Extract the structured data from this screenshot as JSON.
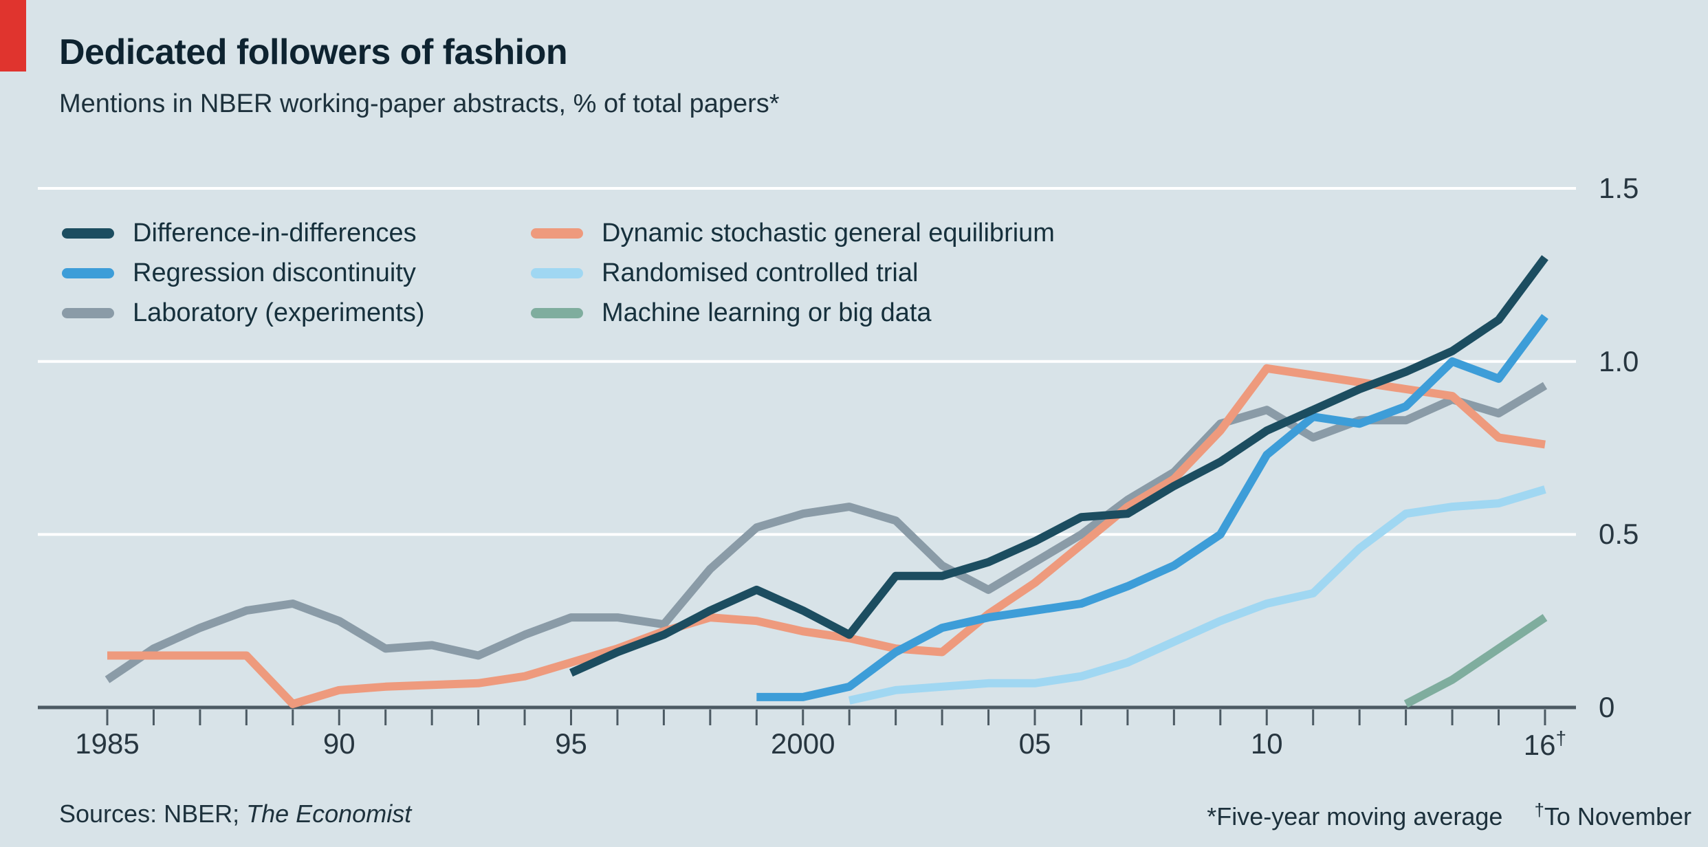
{
  "header": {
    "title": "Dedicated followers of fashion",
    "subtitle": "Mentions in NBER working-paper abstracts, % of total papers*"
  },
  "footer": {
    "sources_prefix": "Sources: NBER; ",
    "sources_italic": "The Economist",
    "note_average": "*Five-year moving average",
    "note_november_symbol": "†",
    "note_november_text": "To November"
  },
  "colors": {
    "background": "#d8e3e8",
    "red_tab": "#e0342e",
    "title_text": "#0e2330",
    "body_text": "#1d313c",
    "gridline": "#ffffff",
    "axis": "#4c5a63",
    "tick_label": "#273640"
  },
  "chart_data": {
    "type": "line",
    "title": "Dedicated followers of fashion",
    "subtitle": "Mentions in NBER working-paper abstracts, % of total papers*",
    "xlabel": "",
    "ylabel": "% of total papers",
    "x_range": [
      1985,
      2016
    ],
    "ylim": [
      0,
      1.5
    ],
    "grid": "horizontal-white",
    "legend_position": "top-left-two-columns",
    "yticks": [
      {
        "value": 0,
        "label": "0"
      },
      {
        "value": 0.5,
        "label": "0.5"
      },
      {
        "value": 1.0,
        "label": "1.0"
      },
      {
        "value": 1.5,
        "label": "1.5"
      }
    ],
    "xticks_labeled": [
      {
        "year": 1985,
        "label": "1985",
        "sup": ""
      },
      {
        "year": 1990,
        "label": "90",
        "sup": ""
      },
      {
        "year": 1995,
        "label": "95",
        "sup": ""
      },
      {
        "year": 2000,
        "label": "2000",
        "sup": ""
      },
      {
        "year": 2005,
        "label": "05",
        "sup": ""
      },
      {
        "year": 2010,
        "label": "10",
        "sup": ""
      },
      {
        "year": 2016,
        "label": "16",
        "sup": "†"
      }
    ],
    "series": [
      {
        "name": "Difference-in-differences",
        "color": "#1c4d60",
        "points": [
          [
            1995,
            0.1
          ],
          [
            1996,
            0.16
          ],
          [
            1997,
            0.21
          ],
          [
            1998,
            0.28
          ],
          [
            1999,
            0.34
          ],
          [
            2000,
            0.28
          ],
          [
            2001,
            0.21
          ],
          [
            2002,
            0.38
          ],
          [
            2003,
            0.38
          ],
          [
            2004,
            0.42
          ],
          [
            2005,
            0.48
          ],
          [
            2006,
            0.55
          ],
          [
            2007,
            0.56
          ],
          [
            2008,
            0.64
          ],
          [
            2009,
            0.71
          ],
          [
            2010,
            0.8
          ],
          [
            2011,
            0.86
          ],
          [
            2012,
            0.92
          ],
          [
            2013,
            0.97
          ],
          [
            2014,
            1.03
          ],
          [
            2015,
            1.12
          ],
          [
            2016,
            1.3
          ]
        ]
      },
      {
        "name": "Regression discontinuity",
        "color": "#3d9dd8",
        "points": [
          [
            1999,
            0.03
          ],
          [
            2000,
            0.03
          ],
          [
            2001,
            0.06
          ],
          [
            2002,
            0.16
          ],
          [
            2003,
            0.23
          ],
          [
            2004,
            0.26
          ],
          [
            2005,
            0.28
          ],
          [
            2006,
            0.3
          ],
          [
            2007,
            0.35
          ],
          [
            2008,
            0.41
          ],
          [
            2009,
            0.5
          ],
          [
            2010,
            0.73
          ],
          [
            2011,
            0.84
          ],
          [
            2012,
            0.82
          ],
          [
            2013,
            0.87
          ],
          [
            2014,
            1.0
          ],
          [
            2015,
            0.95
          ],
          [
            2016,
            1.13
          ]
        ]
      },
      {
        "name": "Laboratory (experiments)",
        "color": "#8a9ba7",
        "points": [
          [
            1985,
            0.08
          ],
          [
            1986,
            0.17
          ],
          [
            1987,
            0.23
          ],
          [
            1988,
            0.28
          ],
          [
            1989,
            0.3
          ],
          [
            1990,
            0.25
          ],
          [
            1991,
            0.17
          ],
          [
            1992,
            0.18
          ],
          [
            1993,
            0.15
          ],
          [
            1994,
            0.21
          ],
          [
            1995,
            0.26
          ],
          [
            1996,
            0.26
          ],
          [
            1997,
            0.24
          ],
          [
            1998,
            0.4
          ],
          [
            1999,
            0.52
          ],
          [
            2000,
            0.56
          ],
          [
            2001,
            0.58
          ],
          [
            2002,
            0.54
          ],
          [
            2003,
            0.41
          ],
          [
            2004,
            0.34
          ],
          [
            2005,
            0.42
          ],
          [
            2006,
            0.5
          ],
          [
            2007,
            0.6
          ],
          [
            2008,
            0.68
          ],
          [
            2009,
            0.82
          ],
          [
            2010,
            0.86
          ],
          [
            2011,
            0.78
          ],
          [
            2012,
            0.83
          ],
          [
            2013,
            0.83
          ],
          [
            2014,
            0.89
          ],
          [
            2015,
            0.85
          ],
          [
            2016,
            0.93
          ]
        ]
      },
      {
        "name": "Dynamic stochastic general equilibrium",
        "color": "#ee9a7d",
        "points": [
          [
            1985,
            0.15
          ],
          [
            1986,
            0.15
          ],
          [
            1987,
            0.15
          ],
          [
            1988,
            0.15
          ],
          [
            1989,
            0.01
          ],
          [
            1990,
            0.05
          ],
          [
            1991,
            0.06
          ],
          [
            1992,
            0.065
          ],
          [
            1993,
            0.07
          ],
          [
            1994,
            0.09
          ],
          [
            1995,
            0.13
          ],
          [
            1996,
            0.17
          ],
          [
            1997,
            0.22
          ],
          [
            1998,
            0.26
          ],
          [
            1999,
            0.25
          ],
          [
            2000,
            0.22
          ],
          [
            2001,
            0.2
          ],
          [
            2002,
            0.17
          ],
          [
            2003,
            0.16
          ],
          [
            2004,
            0.27
          ],
          [
            2005,
            0.36
          ],
          [
            2006,
            0.47
          ],
          [
            2007,
            0.58
          ],
          [
            2008,
            0.66
          ],
          [
            2009,
            0.8
          ],
          [
            2010,
            0.98
          ],
          [
            2011,
            0.96
          ],
          [
            2012,
            0.94
          ],
          [
            2013,
            0.92
          ],
          [
            2014,
            0.9
          ],
          [
            2015,
            0.78
          ],
          [
            2016,
            0.76
          ]
        ]
      },
      {
        "name": "Randomised controlled trial",
        "color": "#a0d7f2",
        "points": [
          [
            2001,
            0.02
          ],
          [
            2002,
            0.05
          ],
          [
            2003,
            0.06
          ],
          [
            2004,
            0.07
          ],
          [
            2005,
            0.07
          ],
          [
            2006,
            0.09
          ],
          [
            2007,
            0.13
          ],
          [
            2008,
            0.19
          ],
          [
            2009,
            0.25
          ],
          [
            2010,
            0.3
          ],
          [
            2011,
            0.33
          ],
          [
            2012,
            0.46
          ],
          [
            2013,
            0.56
          ],
          [
            2014,
            0.58
          ],
          [
            2015,
            0.59
          ],
          [
            2016,
            0.63
          ]
        ]
      },
      {
        "name": "Machine learning or big data",
        "color": "#7fad9e",
        "points": [
          [
            2013,
            0.01
          ],
          [
            2014,
            0.08
          ],
          [
            2015,
            0.17
          ],
          [
            2016,
            0.26
          ]
        ]
      }
    ],
    "legend_columns": [
      [
        0,
        1,
        2
      ],
      [
        3,
        4,
        5
      ]
    ]
  }
}
